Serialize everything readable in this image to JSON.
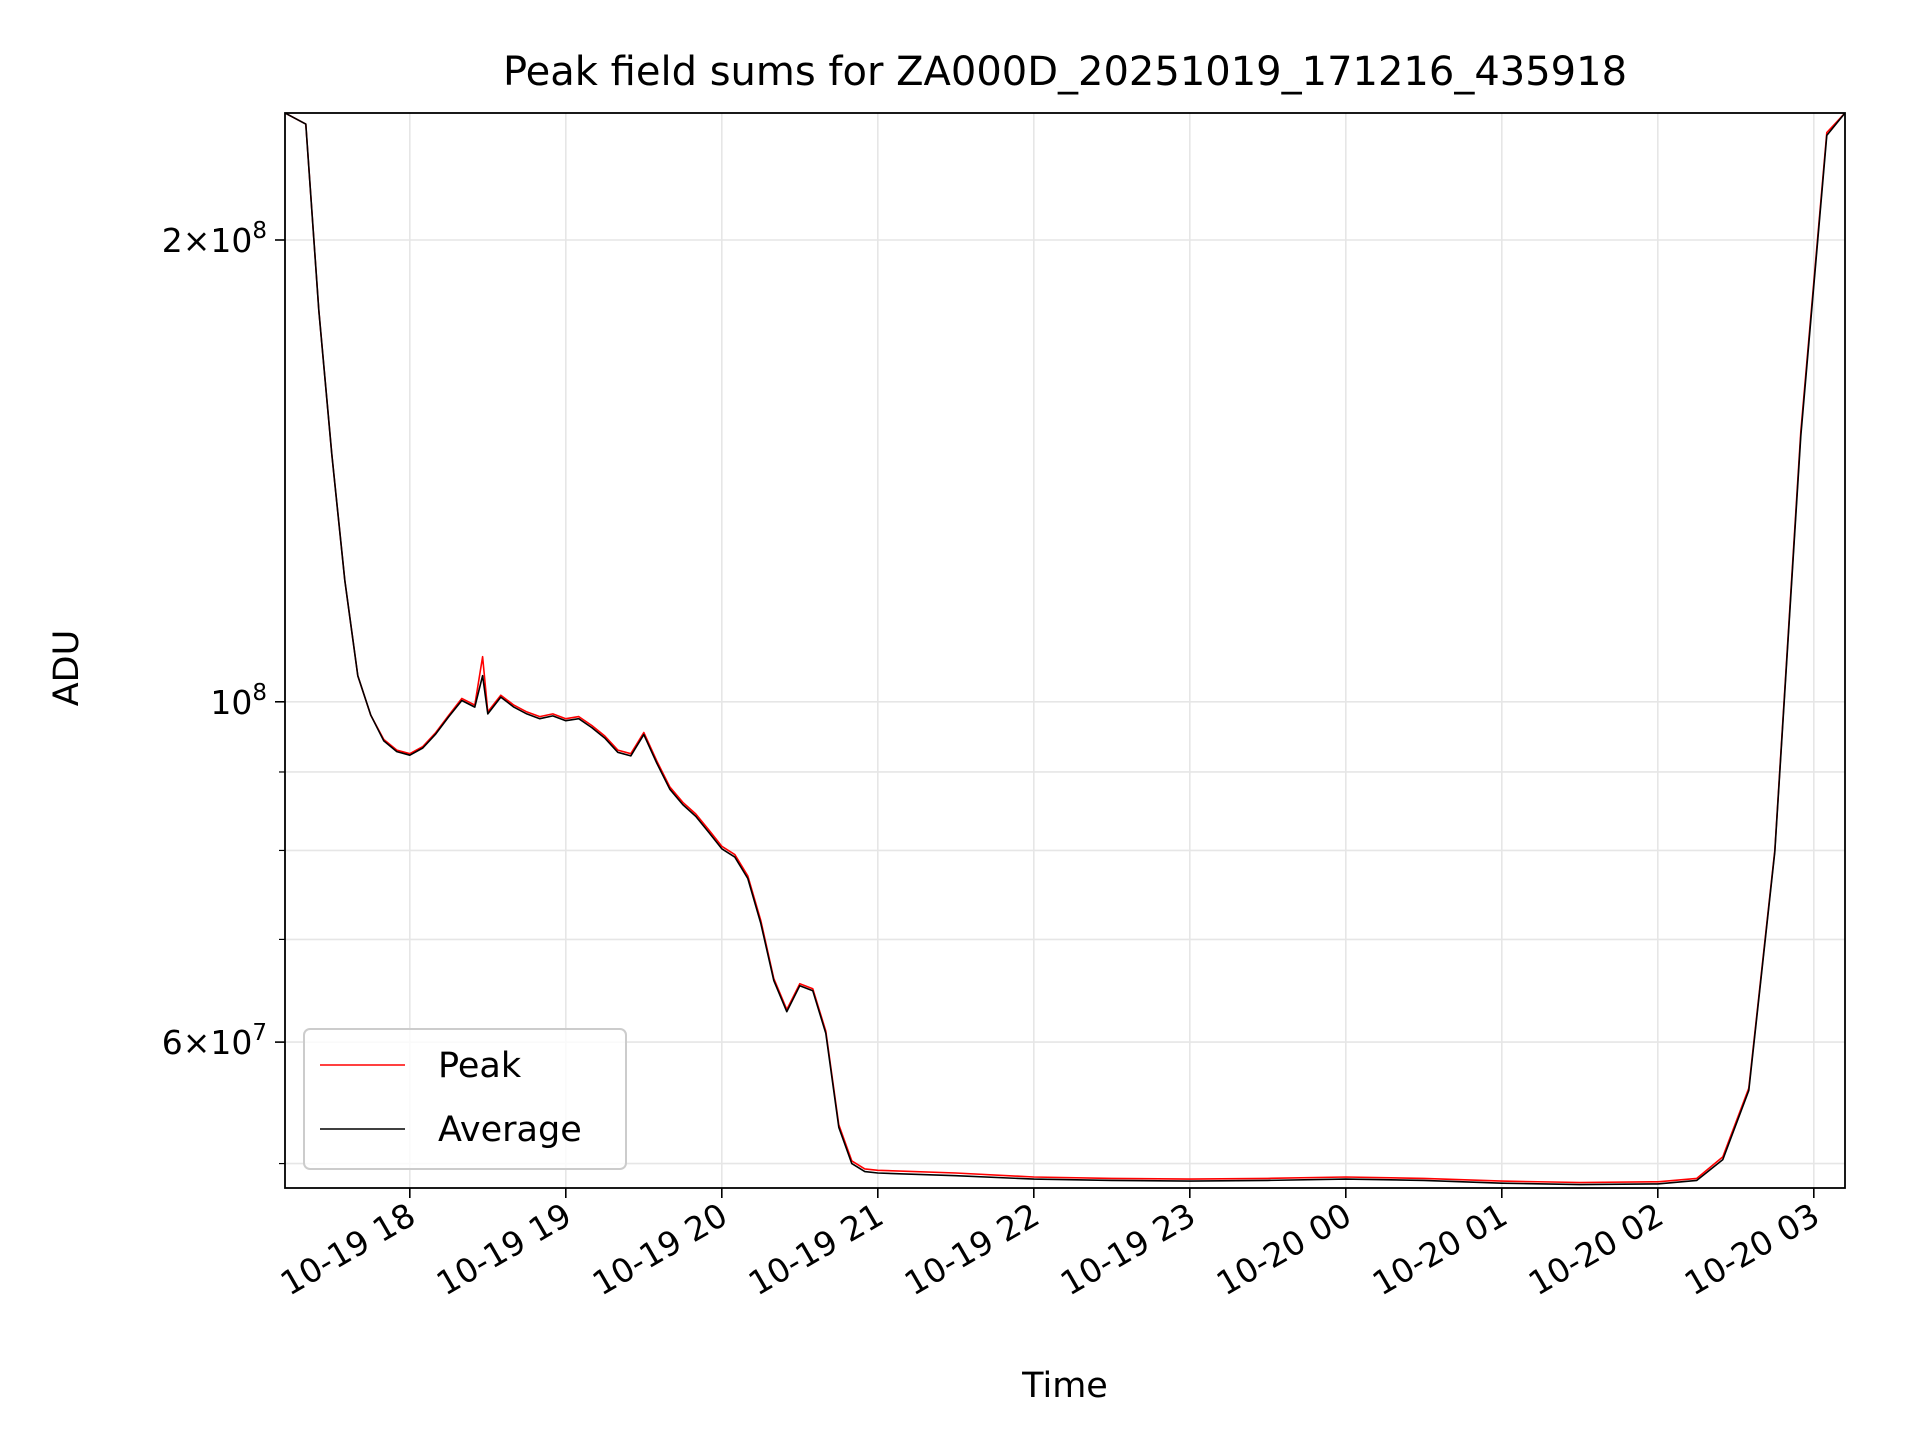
{
  "chart_data": {
    "type": "line",
    "title": "Peak field sums for ZA000D_20251019_171216_435918",
    "xlabel": "Time",
    "ylabel": "ADU",
    "yscale": "log",
    "grid": true,
    "legend_position": "lower-left",
    "xlim": [
      "2025-10-19 17:12",
      "2025-10-20 03:12"
    ],
    "ylim": [
      48200000,
      242000000
    ],
    "x_ticks": [
      {
        "value": "2025-10-19 18:00",
        "label": "10-19 18"
      },
      {
        "value": "2025-10-19 19:00",
        "label": "10-19 19"
      },
      {
        "value": "2025-10-19 20:00",
        "label": "10-19 20"
      },
      {
        "value": "2025-10-19 21:00",
        "label": "10-19 21"
      },
      {
        "value": "2025-10-19 22:00",
        "label": "10-19 22"
      },
      {
        "value": "2025-10-19 23:00",
        "label": "10-19 23"
      },
      {
        "value": "2025-10-20 00:00",
        "label": "10-20 00"
      },
      {
        "value": "2025-10-20 01:00",
        "label": "10-20 01"
      },
      {
        "value": "2025-10-20 02:00",
        "label": "10-20 02"
      },
      {
        "value": "2025-10-20 03:00",
        "label": "10-20 03"
      }
    ],
    "y_major_ticks": [
      {
        "value": 200000000,
        "mant": "2",
        "exp": "8"
      },
      {
        "value": 100000000,
        "mant": "",
        "exp": "8"
      },
      {
        "value": 60000000,
        "mant": "6",
        "exp": "7"
      }
    ],
    "y_minor_ticks": [
      50000000,
      70000000,
      80000000,
      90000000
    ],
    "series": [
      {
        "name": "Peak",
        "color": "#ff0000",
        "points": [
          [
            "2025-10-19 17:12",
            242000000
          ],
          [
            "2025-10-19 17:20",
            238000000
          ],
          [
            "2025-10-19 17:25",
            180000000
          ],
          [
            "2025-10-19 17:30",
            145000000
          ],
          [
            "2025-10-19 17:35",
            120000000
          ],
          [
            "2025-10-19 17:40",
            104000000
          ],
          [
            "2025-10-19 17:45",
            98000000
          ],
          [
            "2025-10-19 17:50",
            94500000
          ],
          [
            "2025-10-19 17:55",
            93000000
          ],
          [
            "2025-10-19 18:00",
            92500000
          ],
          [
            "2025-10-19 18:05",
            93500000
          ],
          [
            "2025-10-19 18:10",
            95500000
          ],
          [
            "2025-10-19 18:15",
            98000000
          ],
          [
            "2025-10-19 18:20",
            100500000
          ],
          [
            "2025-10-19 18:25",
            99500000
          ],
          [
            "2025-10-19 18:28",
            107000000
          ],
          [
            "2025-10-19 18:30",
            98500000
          ],
          [
            "2025-10-19 18:35",
            101000000
          ],
          [
            "2025-10-19 18:40",
            99500000
          ],
          [
            "2025-10-19 18:45",
            98500000
          ],
          [
            "2025-10-19 18:50",
            97800000
          ],
          [
            "2025-10-19 18:55",
            98200000
          ],
          [
            "2025-10-19 19:00",
            97500000
          ],
          [
            "2025-10-19 19:05",
            97800000
          ],
          [
            "2025-10-19 19:10",
            96500000
          ],
          [
            "2025-10-19 19:15",
            95000000
          ],
          [
            "2025-10-19 19:20",
            93000000
          ],
          [
            "2025-10-19 19:25",
            92500000
          ],
          [
            "2025-10-19 19:30",
            95500000
          ],
          [
            "2025-10-19 19:35",
            91500000
          ],
          [
            "2025-10-19 19:40",
            88000000
          ],
          [
            "2025-10-19 19:45",
            86000000
          ],
          [
            "2025-10-19 19:50",
            84500000
          ],
          [
            "2025-10-19 19:55",
            82500000
          ],
          [
            "2025-10-19 20:00",
            80500000
          ],
          [
            "2025-10-19 20:05",
            79500000
          ],
          [
            "2025-10-19 20:10",
            77000000
          ],
          [
            "2025-10-19 20:15",
            72000000
          ],
          [
            "2025-10-19 20:20",
            66000000
          ],
          [
            "2025-10-19 20:25",
            63000000
          ],
          [
            "2025-10-19 20:30",
            65500000
          ],
          [
            "2025-10-19 20:35",
            65000000
          ],
          [
            "2025-10-19 20:40",
            61000000
          ],
          [
            "2025-10-19 20:45",
            53000000
          ],
          [
            "2025-10-19 20:50",
            50200000
          ],
          [
            "2025-10-19 20:55",
            49600000
          ],
          [
            "2025-10-19 21:00",
            49500000
          ],
          [
            "2025-10-19 21:30",
            49300000
          ],
          [
            "2025-10-19 22:00",
            49000000
          ],
          [
            "2025-10-19 22:30",
            48900000
          ],
          [
            "2025-10-19 23:00",
            48850000
          ],
          [
            "2025-10-19 23:30",
            48900000
          ],
          [
            "2025-10-20 00:00",
            49000000
          ],
          [
            "2025-10-20 00:30",
            48900000
          ],
          [
            "2025-10-20 01:00",
            48700000
          ],
          [
            "2025-10-20 01:30",
            48600000
          ],
          [
            "2025-10-20 02:00",
            48650000
          ],
          [
            "2025-10-20 02:15",
            48900000
          ],
          [
            "2025-10-20 02:25",
            50500000
          ],
          [
            "2025-10-20 02:35",
            56000000
          ],
          [
            "2025-10-20 02:45",
            80000000
          ],
          [
            "2025-10-20 02:55",
            150000000
          ],
          [
            "2025-10-20 03:05",
            235000000
          ],
          [
            "2025-10-20 03:12",
            242000000
          ]
        ]
      },
      {
        "name": "Average",
        "color": "#000000",
        "points": [
          [
            "2025-10-19 17:12",
            242000000
          ],
          [
            "2025-10-19 17:20",
            238000000
          ],
          [
            "2025-10-19 17:25",
            180000000
          ],
          [
            "2025-10-19 17:30",
            145000000
          ],
          [
            "2025-10-19 17:35",
            120000000
          ],
          [
            "2025-10-19 17:40",
            104000000
          ],
          [
            "2025-10-19 17:45",
            98000000
          ],
          [
            "2025-10-19 17:50",
            94300000
          ],
          [
            "2025-10-19 17:55",
            92800000
          ],
          [
            "2025-10-19 18:00",
            92300000
          ],
          [
            "2025-10-19 18:05",
            93300000
          ],
          [
            "2025-10-19 18:10",
            95300000
          ],
          [
            "2025-10-19 18:15",
            97800000
          ],
          [
            "2025-10-19 18:20",
            100200000
          ],
          [
            "2025-10-19 18:25",
            99200000
          ],
          [
            "2025-10-19 18:28",
            104000000
          ],
          [
            "2025-10-19 18:30",
            98200000
          ],
          [
            "2025-10-19 18:35",
            100700000
          ],
          [
            "2025-10-19 18:40",
            99200000
          ],
          [
            "2025-10-19 18:45",
            98200000
          ],
          [
            "2025-10-19 18:50",
            97500000
          ],
          [
            "2025-10-19 18:55",
            97900000
          ],
          [
            "2025-10-19 19:00",
            97200000
          ],
          [
            "2025-10-19 19:05",
            97500000
          ],
          [
            "2025-10-19 19:10",
            96200000
          ],
          [
            "2025-10-19 19:15",
            94700000
          ],
          [
            "2025-10-19 19:20",
            92700000
          ],
          [
            "2025-10-19 19:25",
            92200000
          ],
          [
            "2025-10-19 19:30",
            95200000
          ],
          [
            "2025-10-19 19:35",
            91200000
          ],
          [
            "2025-10-19 19:40",
            87700000
          ],
          [
            "2025-10-19 19:45",
            85700000
          ],
          [
            "2025-10-19 19:50",
            84200000
          ],
          [
            "2025-10-19 19:55",
            82200000
          ],
          [
            "2025-10-19 20:00",
            80200000
          ],
          [
            "2025-10-19 20:05",
            79200000
          ],
          [
            "2025-10-19 20:10",
            76700000
          ],
          [
            "2025-10-19 20:15",
            71700000
          ],
          [
            "2025-10-19 20:20",
            65800000
          ],
          [
            "2025-10-19 20:25",
            62800000
          ],
          [
            "2025-10-19 20:30",
            65300000
          ],
          [
            "2025-10-19 20:35",
            64800000
          ],
          [
            "2025-10-19 20:40",
            60800000
          ],
          [
            "2025-10-19 20:45",
            52800000
          ],
          [
            "2025-10-19 20:50",
            50000000
          ],
          [
            "2025-10-19 20:55",
            49400000
          ],
          [
            "2025-10-19 21:00",
            49300000
          ],
          [
            "2025-10-19 21:30",
            49100000
          ],
          [
            "2025-10-19 22:00",
            48850000
          ],
          [
            "2025-10-19 22:30",
            48750000
          ],
          [
            "2025-10-19 23:00",
            48700000
          ],
          [
            "2025-10-19 23:30",
            48750000
          ],
          [
            "2025-10-20 00:00",
            48850000
          ],
          [
            "2025-10-20 00:30",
            48750000
          ],
          [
            "2025-10-20 01:00",
            48550000
          ],
          [
            "2025-10-20 01:30",
            48450000
          ],
          [
            "2025-10-20 02:00",
            48500000
          ],
          [
            "2025-10-20 02:15",
            48750000
          ],
          [
            "2025-10-20 02:25",
            50300000
          ],
          [
            "2025-10-20 02:35",
            55800000
          ],
          [
            "2025-10-20 02:45",
            79800000
          ],
          [
            "2025-10-20 02:55",
            149000000
          ],
          [
            "2025-10-20 03:05",
            234000000
          ],
          [
            "2025-10-20 03:12",
            242000000
          ]
        ]
      }
    ]
  }
}
